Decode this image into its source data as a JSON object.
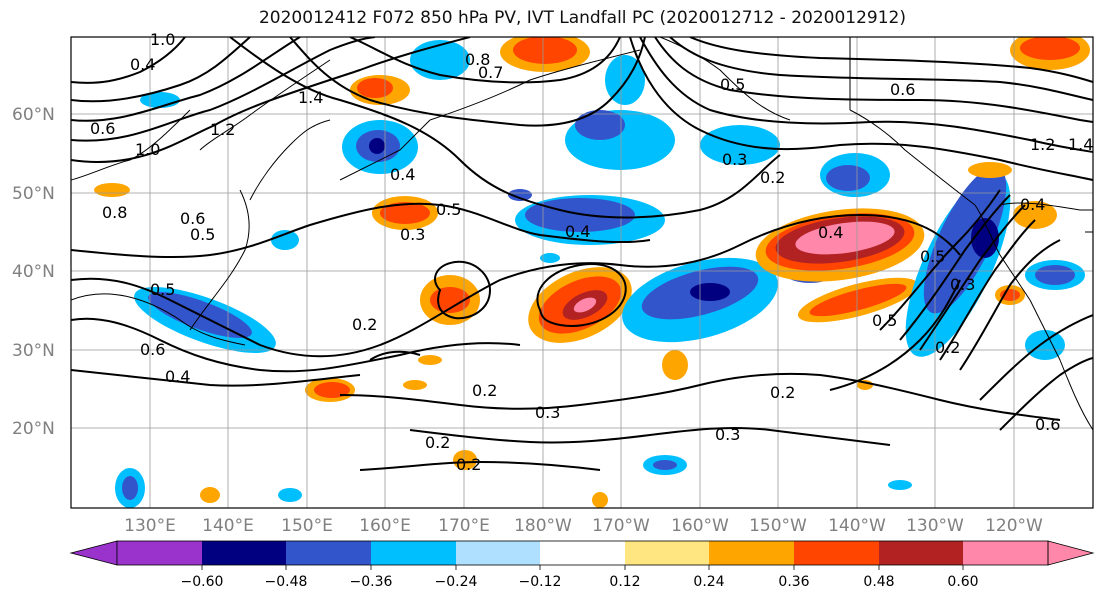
{
  "title": "2020012412 F072 850 hPa PV, IVT Landfall PC (2020012712 - 2020012912)",
  "lat_labels": [
    "60°N",
    "50°N",
    "40°N",
    "30°N",
    "20°N"
  ],
  "lon_labels": [
    "130°E",
    "140°E",
    "150°E",
    "160°E",
    "170°E",
    "180°W",
    "170°W",
    "160°W",
    "150°W",
    "140°W",
    "130°W",
    "120°W"
  ],
  "colorbar": {
    "tick_labels": [
      "−0.60",
      "−0.48",
      "−0.36",
      "−0.24",
      "−0.12",
      "0.12",
      "0.24",
      "0.36",
      "0.48",
      "0.60"
    ],
    "colors": [
      "#9933cc",
      "#000080",
      "#3355cc",
      "#00bfff",
      "#b0e0ff",
      "#ffffff",
      "#ffe680",
      "#ffa500",
      "#ff4500",
      "#b22222",
      "#ff88aa"
    ]
  },
  "contour_labels": [
    "1.0",
    "0.4",
    "1.4",
    "0.8",
    "0.7",
    "0.6",
    "1.2",
    "1.0",
    "0.5",
    "0.6",
    "0.8",
    "0.6",
    "0.4",
    "0.5",
    "0.3",
    "0.4",
    "0.5",
    "0.4",
    "0.2",
    "0.4",
    "0.3",
    "0.5",
    "0.3",
    "0.5",
    "0.2",
    "0.2",
    "0.3",
    "0.2",
    "0.2",
    "0.2",
    "0.3",
    "0.2",
    "0.6",
    "0.4",
    "0.5",
    "1.2",
    "1.4",
    "0.6"
  ]
}
